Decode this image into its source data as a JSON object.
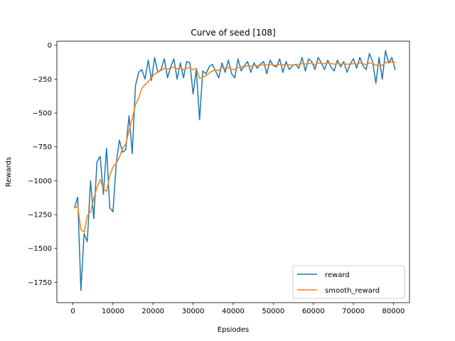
{
  "chart_data": {
    "type": "line",
    "title": "Curve of seed [108]",
    "xlabel": "Epsiodes",
    "ylabel": "Rewards",
    "xlim": [
      -4000,
      84000
    ],
    "ylim": [
      -1900,
      30
    ],
    "xticks": [
      0,
      10000,
      20000,
      30000,
      40000,
      50000,
      60000,
      70000,
      80000
    ],
    "xtick_labels": [
      "0",
      "10000",
      "20000",
      "30000",
      "40000",
      "50000",
      "60000",
      "70000",
      "80000"
    ],
    "yticks": [
      0,
      -250,
      -500,
      -750,
      -1000,
      -1250,
      -1500,
      -1750
    ],
    "ytick_labels": [
      "0",
      "−250",
      "−500",
      "−750",
      "−1000",
      "−1250",
      "−1500",
      "−1750"
    ],
    "grid": false,
    "legend_position": "lower-right",
    "series": [
      {
        "name": "reward",
        "color": "#1f77b4",
        "x": [
          400,
          1200,
          2000,
          2800,
          3600,
          4400,
          5200,
          6000,
          6800,
          7600,
          8400,
          9200,
          10000,
          10800,
          11600,
          12400,
          13200,
          14000,
          14800,
          15600,
          16400,
          17200,
          18000,
          18800,
          19600,
          20400,
          21200,
          22000,
          22800,
          23600,
          24400,
          25200,
          26000,
          26800,
          27600,
          28400,
          29200,
          30000,
          30800,
          31600,
          32400,
          33200,
          34000,
          34800,
          35600,
          36400,
          37200,
          38000,
          38800,
          39600,
          40400,
          41200,
          42000,
          42800,
          43600,
          44400,
          45200,
          46000,
          46800,
          47600,
          48400,
          49200,
          50000,
          50800,
          51600,
          52400,
          53200,
          54000,
          54800,
          55600,
          56400,
          57200,
          58000,
          58800,
          59600,
          60400,
          61200,
          62000,
          62800,
          63600,
          64400,
          65200,
          66000,
          66800,
          67600,
          68400,
          69200,
          70000,
          70800,
          71600,
          72400,
          73200,
          74000,
          74800,
          75600,
          76400,
          77200,
          78000,
          78800,
          79600,
          80400
        ],
        "values": [
          -1200,
          -1120,
          -1810,
          -1390,
          -1450,
          -1000,
          -1280,
          -860,
          -820,
          -1100,
          -760,
          -1200,
          -1230,
          -880,
          -700,
          -790,
          -770,
          -520,
          -800,
          -300,
          -200,
          -180,
          -250,
          -110,
          -260,
          -90,
          -200,
          -180,
          -100,
          -240,
          -160,
          -100,
          -250,
          -130,
          -240,
          -120,
          -130,
          -360,
          -180,
          -550,
          -190,
          -210,
          -160,
          -140,
          -190,
          -240,
          -130,
          -200,
          -110,
          -210,
          -240,
          -100,
          -190,
          -150,
          -120,
          -200,
          -130,
          -170,
          -140,
          -120,
          -210,
          -110,
          -150,
          -160,
          -100,
          -200,
          -120,
          -180,
          -150,
          -140,
          -170,
          -90,
          -190,
          -100,
          -120,
          -180,
          -90,
          -130,
          -180,
          -110,
          -160,
          -190,
          -110,
          -160,
          -120,
          -200,
          -140,
          -100,
          -170,
          -90,
          -150,
          -180,
          -60,
          -120,
          -280,
          -90,
          -250,
          -40,
          -130,
          -90,
          -180
        ]
      },
      {
        "name": "smooth_reward",
        "color": "#ff7f0e",
        "x": [
          400,
          1200,
          2000,
          2800,
          3600,
          4400,
          5200,
          6000,
          6800,
          7600,
          8400,
          9200,
          10000,
          10800,
          11600,
          12400,
          13200,
          14000,
          14800,
          15600,
          16400,
          17200,
          18000,
          18800,
          19600,
          20400,
          21200,
          22000,
          22800,
          23600,
          24400,
          25200,
          26000,
          26800,
          27600,
          28400,
          29200,
          30000,
          30800,
          31600,
          32400,
          33200,
          34000,
          34800,
          35600,
          36400,
          37200,
          38000,
          38800,
          39600,
          40400,
          41200,
          42000,
          42800,
          43600,
          44400,
          45200,
          46000,
          46800,
          47600,
          48400,
          49200,
          50000,
          50800,
          51600,
          52400,
          53200,
          54000,
          54800,
          55600,
          56400,
          57200,
          58000,
          58800,
          59600,
          60400,
          61200,
          62000,
          62800,
          63600,
          64400,
          65200,
          66000,
          66800,
          67600,
          68400,
          69200,
          70000,
          70800,
          71600,
          72400,
          73200,
          74000,
          74800,
          75600,
          76400,
          77200,
          78000,
          78800,
          79600,
          80400
        ],
        "values": [
          -1200,
          -1190,
          -1360,
          -1380,
          -1260,
          -1230,
          -1130,
          -1050,
          -990,
          -1060,
          -1080,
          -960,
          -900,
          -870,
          -830,
          -760,
          -730,
          -630,
          -540,
          -440,
          -390,
          -320,
          -290,
          -270,
          -240,
          -210,
          -200,
          -185,
          -170,
          -175,
          -170,
          -160,
          -175,
          -165,
          -180,
          -170,
          -165,
          -180,
          -170,
          -245,
          -235,
          -225,
          -205,
          -190,
          -185,
          -185,
          -165,
          -170,
          -165,
          -175,
          -180,
          -165,
          -160,
          -160,
          -150,
          -155,
          -150,
          -150,
          -145,
          -145,
          -145,
          -140,
          -145,
          -150,
          -140,
          -145,
          -140,
          -145,
          -145,
          -145,
          -140,
          -135,
          -140,
          -135,
          -130,
          -145,
          -130,
          -135,
          -135,
          -130,
          -135,
          -140,
          -135,
          -140,
          -135,
          -140,
          -140,
          -135,
          -140,
          -130,
          -135,
          -145,
          -130,
          -130,
          -150,
          -135,
          -150,
          -125,
          -130,
          -120,
          -125
        ]
      }
    ]
  }
}
